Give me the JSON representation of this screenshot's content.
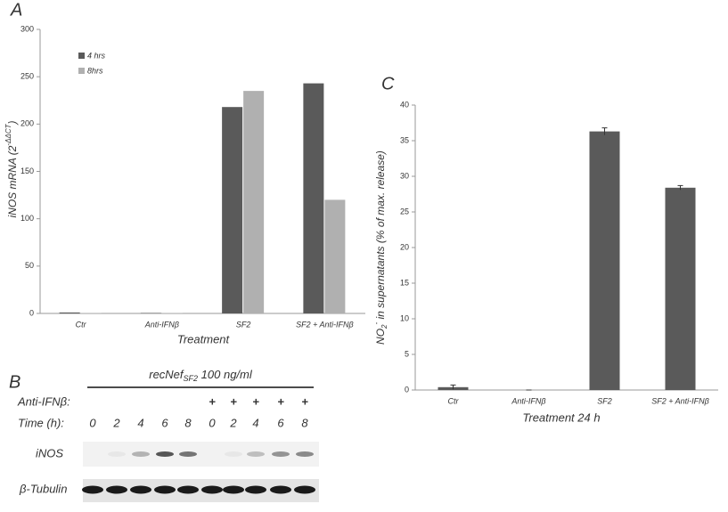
{
  "chart_data": [
    {
      "type": "bar",
      "panel_label": "A",
      "ylabel": [
        "iNOS mRNA (2",
        "-ΔΔCT",
        ")"
      ],
      "xlabel": "Treatment",
      "categories": [
        "Ctr",
        "Anti-IFNβ",
        "SF2",
        "SF2 + Anti-IFNβ"
      ],
      "series": [
        {
          "name": "4 hrs",
          "color": "#5a5a5a",
          "values": [
            1,
            0.5,
            218,
            243
          ]
        },
        {
          "name": "8hrs",
          "color": "#b0b0b0",
          "values": [
            0.5,
            0.5,
            235,
            120
          ]
        }
      ],
      "ylim": [
        0,
        300
      ],
      "yticks": [
        0,
        50,
        100,
        150,
        200,
        250,
        300
      ],
      "grid": false
    },
    {
      "type": "bar",
      "panel_label": "C",
      "ylabel": [
        "NO",
        "2",
        "-",
        " in supernatants (% of max. release)"
      ],
      "xlabel": "Treatment 24 h",
      "categories": [
        "Ctr",
        "Anti-IFNβ",
        "SF2",
        "SF2 + Anti-IFNβ"
      ],
      "values": [
        0.4,
        0,
        36.3,
        28.4
      ],
      "errors": [
        0.3,
        0,
        0.5,
        0.3
      ],
      "color": "#5a5a5a",
      "ylim": [
        0,
        40
      ],
      "yticks": [
        0,
        5,
        10,
        15,
        20,
        25,
        30,
        35,
        40
      ],
      "grid": false
    }
  ],
  "blot": {
    "panel_label": "B",
    "treatment": [
      "recNef",
      "SF2",
      " 100 ng/ml"
    ],
    "row_labels": [
      "Anti-IFNβ:",
      "Time (h):",
      "iNOS",
      "β-Tubulin"
    ],
    "anti": [
      "+",
      "+",
      "+",
      "+",
      "+"
    ],
    "times": [
      "0",
      "2",
      "4",
      "6",
      "8",
      "0",
      "2",
      "4",
      "6",
      "8"
    ]
  }
}
